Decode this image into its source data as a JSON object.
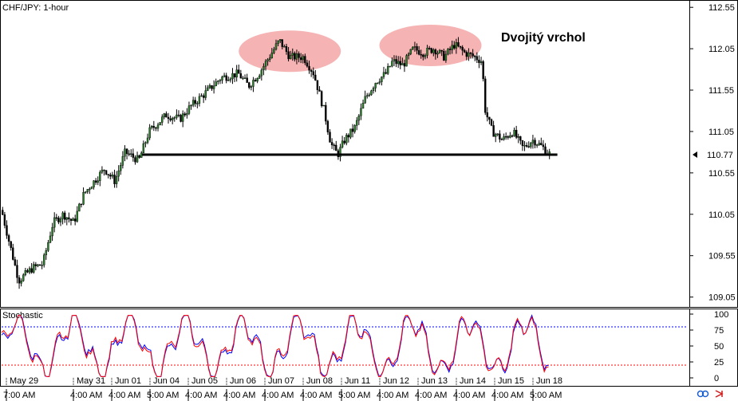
{
  "chart_data": [
    {
      "type": "candlestick",
      "title": "CHF/JPY: 1-hour",
      "ylim": [
        108.95,
        112.6
      ],
      "y_ticks": [
        "112.55",
        "112.05",
        "111.55",
        "111.05",
        "110.55",
        "110.05",
        "109.55",
        "109.05"
      ],
      "current_price": "110.77",
      "support_level": 110.77,
      "annotation": "Dvojitý vrchol",
      "grid": false,
      "highlights": [
        {
          "name": "first-top",
          "x_center": 0.42,
          "y_center": 112.02
        },
        {
          "name": "second-top",
          "x_center": 0.625,
          "y_center": 112.09
        }
      ],
      "path": [
        [
          0.0,
          110.1
        ],
        [
          0.01,
          109.75
        ],
        [
          0.025,
          109.25
        ],
        [
          0.045,
          109.4
        ],
        [
          0.06,
          109.45
        ],
        [
          0.075,
          109.95
        ],
        [
          0.09,
          110.05
        ],
        [
          0.105,
          109.95
        ],
        [
          0.12,
          110.3
        ],
        [
          0.135,
          110.45
        ],
        [
          0.15,
          110.6
        ],
        [
          0.165,
          110.45
        ],
        [
          0.18,
          110.8
        ],
        [
          0.2,
          110.7
        ],
        [
          0.215,
          111.05
        ],
        [
          0.24,
          111.25
        ],
        [
          0.26,
          111.2
        ],
        [
          0.275,
          111.35
        ],
        [
          0.295,
          111.5
        ],
        [
          0.32,
          111.7
        ],
        [
          0.345,
          111.75
        ],
        [
          0.36,
          111.6
        ],
        [
          0.375,
          111.75
        ],
        [
          0.39,
          111.95
        ],
        [
          0.405,
          112.15
        ],
        [
          0.42,
          111.95
        ],
        [
          0.44,
          111.95
        ],
        [
          0.455,
          111.75
        ],
        [
          0.47,
          111.3
        ],
        [
          0.48,
          110.9
        ],
        [
          0.49,
          110.77
        ],
        [
          0.5,
          110.95
        ],
        [
          0.515,
          111.1
        ],
        [
          0.53,
          111.45
        ],
        [
          0.545,
          111.65
        ],
        [
          0.56,
          111.75
        ],
        [
          0.57,
          111.9
        ],
        [
          0.585,
          111.85
        ],
        [
          0.6,
          112.05
        ],
        [
          0.615,
          112.0
        ],
        [
          0.63,
          112.05
        ],
        [
          0.645,
          111.95
        ],
        [
          0.66,
          112.1
        ],
        [
          0.675,
          112.0
        ],
        [
          0.69,
          111.95
        ],
        [
          0.7,
          111.9
        ],
        [
          0.705,
          111.3
        ],
        [
          0.715,
          111.05
        ],
        [
          0.73,
          110.95
        ],
        [
          0.745,
          111.05
        ],
        [
          0.76,
          110.85
        ],
        [
          0.775,
          110.95
        ],
        [
          0.79,
          110.85
        ],
        [
          0.8,
          110.77
        ]
      ]
    },
    {
      "type": "line",
      "title": "Stochastic",
      "ylim": [
        0,
        100
      ],
      "y_ticks": [
        "100",
        "75",
        "50",
        "25",
        "0"
      ],
      "levels": [
        80,
        20
      ],
      "series": [
        {
          "color": "#ff0000"
        },
        {
          "color": "#0000ff"
        }
      ],
      "x_ticks": [
        "May 29",
        "May 31",
        "Jun 01",
        "Jun 04",
        "Jun 05",
        "Jun 06",
        "Jun 07",
        "Jun 08",
        "Jun 11",
        "Jun 12",
        "Jun 13",
        "Jun 14",
        "Jun 15",
        "Jun 18"
      ],
      "time_labels": [
        "7:00 AM",
        "4:00 AM",
        "4:00 AM",
        "5:00 AM",
        "4:00 AM",
        "4:00 AM",
        "4:00 AM",
        "4:00 AM",
        "5:00 AM",
        "4:00 AM",
        "4:00 AM",
        "4:00 AM",
        "4:00 AM",
        "5:00 AM"
      ]
    }
  ],
  "colors": {
    "up_candle": "#2a7d2a",
    "down_candle": "#000000",
    "highlight": "#f4a0a0",
    "stoch_k": "#ff0000",
    "stoch_d": "#0000ff",
    "overbought": "#0000ff",
    "oversold": "#ff0000"
  },
  "icons": {
    "bottom_right": [
      "link-icon",
      "arrow-right-icon"
    ],
    "price_marker": "triangle-marker-icon"
  }
}
